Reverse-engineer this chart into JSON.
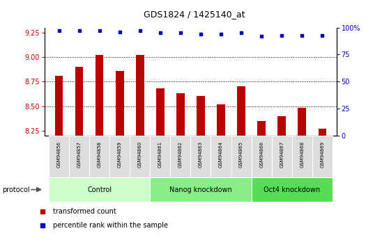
{
  "title": "GDS1824 / 1425140_at",
  "samples": [
    "GSM94856",
    "GSM94857",
    "GSM94858",
    "GSM94859",
    "GSM94860",
    "GSM94861",
    "GSM94862",
    "GSM94863",
    "GSM94864",
    "GSM94865",
    "GSM94866",
    "GSM94867",
    "GSM94868",
    "GSM94869"
  ],
  "bar_values": [
    8.81,
    8.9,
    9.02,
    8.86,
    9.02,
    8.68,
    8.63,
    8.6,
    8.52,
    8.7,
    8.35,
    8.4,
    8.48,
    8.27
  ],
  "dot_values": [
    97,
    97,
    97,
    96,
    97,
    95,
    95,
    94,
    94,
    95,
    92,
    93,
    93,
    93
  ],
  "ylim_left": [
    8.2,
    9.3
  ],
  "ylim_right": [
    0,
    100
  ],
  "yticks_left": [
    8.25,
    8.5,
    8.75,
    9.0,
    9.25
  ],
  "yticks_right": [
    0,
    25,
    50,
    75,
    100
  ],
  "ytick_labels_right": [
    "0",
    "25",
    "50",
    "75",
    "100%"
  ],
  "bar_color": "#BB0000",
  "dot_color": "#0000BB",
  "groups": [
    {
      "label": "Control",
      "start": 0,
      "end": 5,
      "color": "#CCFFCC"
    },
    {
      "label": "Nanog knockdown",
      "start": 5,
      "end": 10,
      "color": "#88EE88"
    },
    {
      "label": "Oct4 knockdown",
      "start": 10,
      "end": 14,
      "color": "#55DD55"
    }
  ],
  "protocol_label": "protocol",
  "legend_bar_label": "transformed count",
  "legend_dot_label": "percentile rank within the sample",
  "bar_bottom": 8.2,
  "bar_width": 0.4
}
